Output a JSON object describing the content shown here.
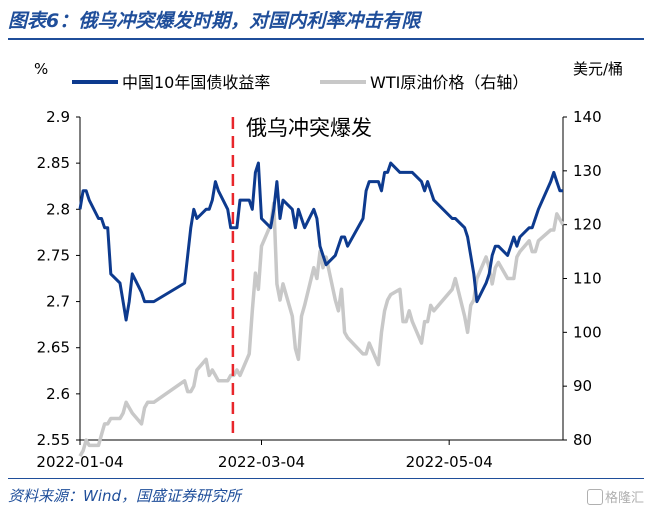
{
  "title": "图表6：俄乌冲突爆发时期，对国内利率冲击有限",
  "source": "资料来源：Wind，国盛证券研究所",
  "watermark": "格隆汇",
  "colors": {
    "cgb": "#0d3a8e",
    "wti": "#c8c8c8",
    "event": "#e8262b",
    "title": "#1f4e9a"
  },
  "chart_data": {
    "type": "line",
    "title": "",
    "annotation": {
      "label": "俄乌冲突爆发",
      "x": "2022-02-24"
    },
    "left_axis": {
      "unit": "%",
      "ylim": [
        2.55,
        2.9
      ],
      "ticks": [
        "2.55",
        "2.6",
        "2.65",
        "2.7",
        "2.75",
        "2.8",
        "2.85",
        "2.9"
      ]
    },
    "right_axis": {
      "unit": "美元/桶",
      "ylim": [
        80,
        140
      ],
      "ticks": [
        "80",
        "90",
        "100",
        "110",
        "120",
        "130",
        "140"
      ]
    },
    "x_ticks": [
      "2022-01-04",
      "2022-03-04",
      "2022-05-04"
    ],
    "legend_position": "top",
    "grid": false,
    "series": [
      {
        "name": "中国10年国债收益率",
        "axis": "left",
        "points": [
          [
            "2022-01-04",
            2.8
          ],
          [
            "2022-01-05",
            2.82
          ],
          [
            "2022-01-06",
            2.82
          ],
          [
            "2022-01-07",
            2.81
          ],
          [
            "2022-01-10",
            2.79
          ],
          [
            "2022-01-11",
            2.79
          ],
          [
            "2022-01-12",
            2.78
          ],
          [
            "2022-01-13",
            2.78
          ],
          [
            "2022-01-14",
            2.73
          ],
          [
            "2022-01-17",
            2.72
          ],
          [
            "2022-01-18",
            2.7
          ],
          [
            "2022-01-19",
            2.68
          ],
          [
            "2022-01-20",
            2.7
          ],
          [
            "2022-01-21",
            2.73
          ],
          [
            "2022-01-24",
            2.71
          ],
          [
            "2022-01-25",
            2.7
          ],
          [
            "2022-01-26",
            2.7
          ],
          [
            "2022-01-27",
            2.7
          ],
          [
            "2022-01-28",
            2.7
          ],
          [
            "2022-02-07",
            2.72
          ],
          [
            "2022-02-08",
            2.75
          ],
          [
            "2022-02-09",
            2.78
          ],
          [
            "2022-02-10",
            2.8
          ],
          [
            "2022-02-11",
            2.79
          ],
          [
            "2022-02-14",
            2.8
          ],
          [
            "2022-02-15",
            2.8
          ],
          [
            "2022-02-16",
            2.81
          ],
          [
            "2022-02-17",
            2.83
          ],
          [
            "2022-02-18",
            2.82
          ],
          [
            "2022-02-21",
            2.8
          ],
          [
            "2022-02-22",
            2.78
          ],
          [
            "2022-02-23",
            2.78
          ],
          [
            "2022-02-24",
            2.78
          ],
          [
            "2022-02-25",
            2.81
          ],
          [
            "2022-02-28",
            2.81
          ],
          [
            "2022-03-01",
            2.8
          ],
          [
            "2022-03-02",
            2.84
          ],
          [
            "2022-03-03",
            2.85
          ],
          [
            "2022-03-04",
            2.79
          ],
          [
            "2022-03-07",
            2.78
          ],
          [
            "2022-03-08",
            2.8
          ],
          [
            "2022-03-09",
            2.83
          ],
          [
            "2022-03-10",
            2.79
          ],
          [
            "2022-03-11",
            2.81
          ],
          [
            "2022-03-14",
            2.8
          ],
          [
            "2022-03-15",
            2.78
          ],
          [
            "2022-03-16",
            2.8
          ],
          [
            "2022-03-17",
            2.79
          ],
          [
            "2022-03-18",
            2.78
          ],
          [
            "2022-03-21",
            2.8
          ],
          [
            "2022-03-22",
            2.79
          ],
          [
            "2022-03-23",
            2.76
          ],
          [
            "2022-03-24",
            2.75
          ],
          [
            "2022-03-25",
            2.74
          ],
          [
            "2022-03-28",
            2.75
          ],
          [
            "2022-03-29",
            2.76
          ],
          [
            "2022-03-30",
            2.77
          ],
          [
            "2022-03-31",
            2.77
          ],
          [
            "2022-04-01",
            2.76
          ],
          [
            "2022-04-06",
            2.79
          ],
          [
            "2022-04-07",
            2.82
          ],
          [
            "2022-04-08",
            2.83
          ],
          [
            "2022-04-11",
            2.83
          ],
          [
            "2022-04-12",
            2.82
          ],
          [
            "2022-04-13",
            2.84
          ],
          [
            "2022-04-14",
            2.84
          ],
          [
            "2022-04-15",
            2.85
          ],
          [
            "2022-04-18",
            2.84
          ],
          [
            "2022-04-19",
            2.84
          ],
          [
            "2022-04-20",
            2.84
          ],
          [
            "2022-04-21",
            2.84
          ],
          [
            "2022-04-22",
            2.84
          ],
          [
            "2022-04-25",
            2.83
          ],
          [
            "2022-04-26",
            2.82
          ],
          [
            "2022-04-27",
            2.83
          ],
          [
            "2022-04-28",
            2.82
          ],
          [
            "2022-04-29",
            2.81
          ],
          [
            "2022-05-05",
            2.79
          ],
          [
            "2022-05-06",
            2.79
          ],
          [
            "2022-05-09",
            2.78
          ],
          [
            "2022-05-10",
            2.77
          ],
          [
            "2022-05-11",
            2.75
          ],
          [
            "2022-05-12",
            2.73
          ],
          [
            "2022-05-13",
            2.7
          ],
          [
            "2022-05-16",
            2.72
          ],
          [
            "2022-05-17",
            2.73
          ],
          [
            "2022-05-18",
            2.75
          ],
          [
            "2022-05-19",
            2.76
          ],
          [
            "2022-05-20",
            2.76
          ],
          [
            "2022-05-23",
            2.75
          ],
          [
            "2022-05-24",
            2.76
          ],
          [
            "2022-05-25",
            2.77
          ],
          [
            "2022-05-26",
            2.76
          ],
          [
            "2022-05-27",
            2.77
          ],
          [
            "2022-05-30",
            2.78
          ],
          [
            "2022-05-31",
            2.78
          ],
          [
            "2022-06-01",
            2.79
          ],
          [
            "2022-06-02",
            2.8
          ],
          [
            "2022-06-06",
            2.83
          ],
          [
            "2022-06-07",
            2.84
          ],
          [
            "2022-06-08",
            2.83
          ],
          [
            "2022-06-09",
            2.82
          ],
          [
            "2022-06-10",
            2.82
          ]
        ]
      },
      {
        "name": "WTI原油价格（右轴）",
        "axis": "right",
        "points": [
          [
            "2022-01-04",
            77
          ],
          [
            "2022-01-05",
            78
          ],
          [
            "2022-01-06",
            80
          ],
          [
            "2022-01-07",
            79
          ],
          [
            "2022-01-10",
            79
          ],
          [
            "2022-01-11",
            81
          ],
          [
            "2022-01-12",
            83
          ],
          [
            "2022-01-13",
            83
          ],
          [
            "2022-01-14",
            84
          ],
          [
            "2022-01-17",
            84
          ],
          [
            "2022-01-18",
            85
          ],
          [
            "2022-01-19",
            87
          ],
          [
            "2022-01-20",
            86
          ],
          [
            "2022-01-21",
            85
          ],
          [
            "2022-01-24",
            83
          ],
          [
            "2022-01-25",
            86
          ],
          [
            "2022-01-26",
            87
          ],
          [
            "2022-01-27",
            87
          ],
          [
            "2022-01-28",
            87
          ],
          [
            "2022-02-07",
            91
          ],
          [
            "2022-02-08",
            89
          ],
          [
            "2022-02-09",
            89
          ],
          [
            "2022-02-10",
            90
          ],
          [
            "2022-02-11",
            93
          ],
          [
            "2022-02-14",
            95
          ],
          [
            "2022-02-15",
            92
          ],
          [
            "2022-02-16",
            93
          ],
          [
            "2022-02-17",
            92
          ],
          [
            "2022-02-18",
            91
          ],
          [
            "2022-02-21",
            91
          ],
          [
            "2022-02-22",
            92
          ],
          [
            "2022-02-23",
            92
          ],
          [
            "2022-02-24",
            93
          ],
          [
            "2022-02-25",
            92
          ],
          [
            "2022-02-28",
            96
          ],
          [
            "2022-03-01",
            104
          ],
          [
            "2022-03-02",
            111
          ],
          [
            "2022-03-03",
            108
          ],
          [
            "2022-03-04",
            116
          ],
          [
            "2022-03-07",
            120
          ],
          [
            "2022-03-08",
            124
          ],
          [
            "2022-03-09",
            109
          ],
          [
            "2022-03-10",
            106
          ],
          [
            "2022-03-11",
            109
          ],
          [
            "2022-03-14",
            103
          ],
          [
            "2022-03-15",
            97
          ],
          [
            "2022-03-16",
            95
          ],
          [
            "2022-03-17",
            103
          ],
          [
            "2022-03-18",
            105
          ],
          [
            "2022-03-21",
            112
          ],
          [
            "2022-03-22",
            110
          ],
          [
            "2022-03-23",
            115
          ],
          [
            "2022-03-24",
            112
          ],
          [
            "2022-03-25",
            114
          ],
          [
            "2022-03-28",
            106
          ],
          [
            "2022-03-29",
            104
          ],
          [
            "2022-03-30",
            108
          ],
          [
            "2022-03-31",
            100
          ],
          [
            "2022-04-01",
            99
          ],
          [
            "2022-04-06",
            96
          ],
          [
            "2022-04-07",
            96
          ],
          [
            "2022-04-08",
            98
          ],
          [
            "2022-04-11",
            94
          ],
          [
            "2022-04-12",
            100
          ],
          [
            "2022-04-13",
            104
          ],
          [
            "2022-04-14",
            106
          ],
          [
            "2022-04-15",
            107
          ],
          [
            "2022-04-18",
            108
          ],
          [
            "2022-04-19",
            102
          ],
          [
            "2022-04-20",
            102
          ],
          [
            "2022-04-21",
            104
          ],
          [
            "2022-04-22",
            102
          ],
          [
            "2022-04-25",
            98
          ],
          [
            "2022-04-26",
            102
          ],
          [
            "2022-04-27",
            102
          ],
          [
            "2022-04-28",
            105
          ],
          [
            "2022-04-29",
            104
          ],
          [
            "2022-05-05",
            108
          ],
          [
            "2022-05-06",
            110
          ],
          [
            "2022-05-09",
            103
          ],
          [
            "2022-05-10",
            100
          ],
          [
            "2022-05-11",
            105
          ],
          [
            "2022-05-12",
            106
          ],
          [
            "2022-05-13",
            110
          ],
          [
            "2022-05-16",
            114
          ],
          [
            "2022-05-17",
            112
          ],
          [
            "2022-05-18",
            109
          ],
          [
            "2022-05-19",
            112
          ],
          [
            "2022-05-20",
            113
          ],
          [
            "2022-05-23",
            110
          ],
          [
            "2022-05-24",
            110
          ],
          [
            "2022-05-25",
            110
          ],
          [
            "2022-05-26",
            114
          ],
          [
            "2022-05-27",
            115
          ],
          [
            "2022-05-30",
            117
          ],
          [
            "2022-05-31",
            115
          ],
          [
            "2022-06-01",
            115
          ],
          [
            "2022-06-02",
            117
          ],
          [
            "2022-06-06",
            119
          ],
          [
            "2022-06-07",
            119
          ],
          [
            "2022-06-08",
            122
          ],
          [
            "2022-06-09",
            121
          ],
          [
            "2022-06-10",
            120
          ]
        ]
      }
    ]
  }
}
